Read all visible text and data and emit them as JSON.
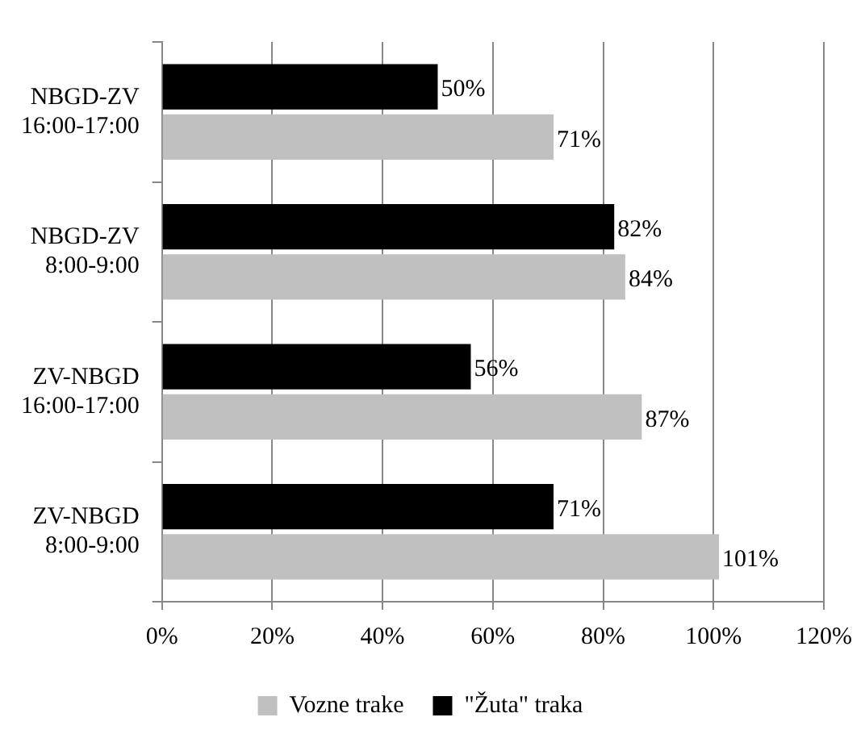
{
  "chart_data": {
    "type": "bar",
    "orientation": "horizontal",
    "categories": [
      "NBGD-ZV 16:00-17:00",
      "NBGD-ZV 8:00-9:00",
      "ZV-NBGD 16:00-17:00",
      "ZV-NBGD 8:00-9:00"
    ],
    "series": [
      {
        "name": "\"Žuta\" traka",
        "color": "#000000",
        "values": [
          50,
          82,
          56,
          71
        ],
        "value_labels": [
          "50%",
          "82%",
          "56%",
          "71%"
        ]
      },
      {
        "name": "Vozne trake",
        "color": "#c0c0c0",
        "values": [
          71,
          84,
          87,
          101
        ],
        "value_labels": [
          "71%",
          "84%",
          "87%",
          "101%"
        ]
      }
    ],
    "xlim": [
      0,
      120
    ],
    "xticks": [
      {
        "value": 0,
        "label": "0%"
      },
      {
        "value": 20,
        "label": "20%"
      },
      {
        "value": 40,
        "label": "40%"
      },
      {
        "value": 60,
        "label": "60%"
      },
      {
        "value": 80,
        "label": "80%"
      },
      {
        "value": 100,
        "label": "100%"
      },
      {
        "value": 120,
        "label": "120%"
      }
    ],
    "grid": "x",
    "legend": "bottom"
  }
}
